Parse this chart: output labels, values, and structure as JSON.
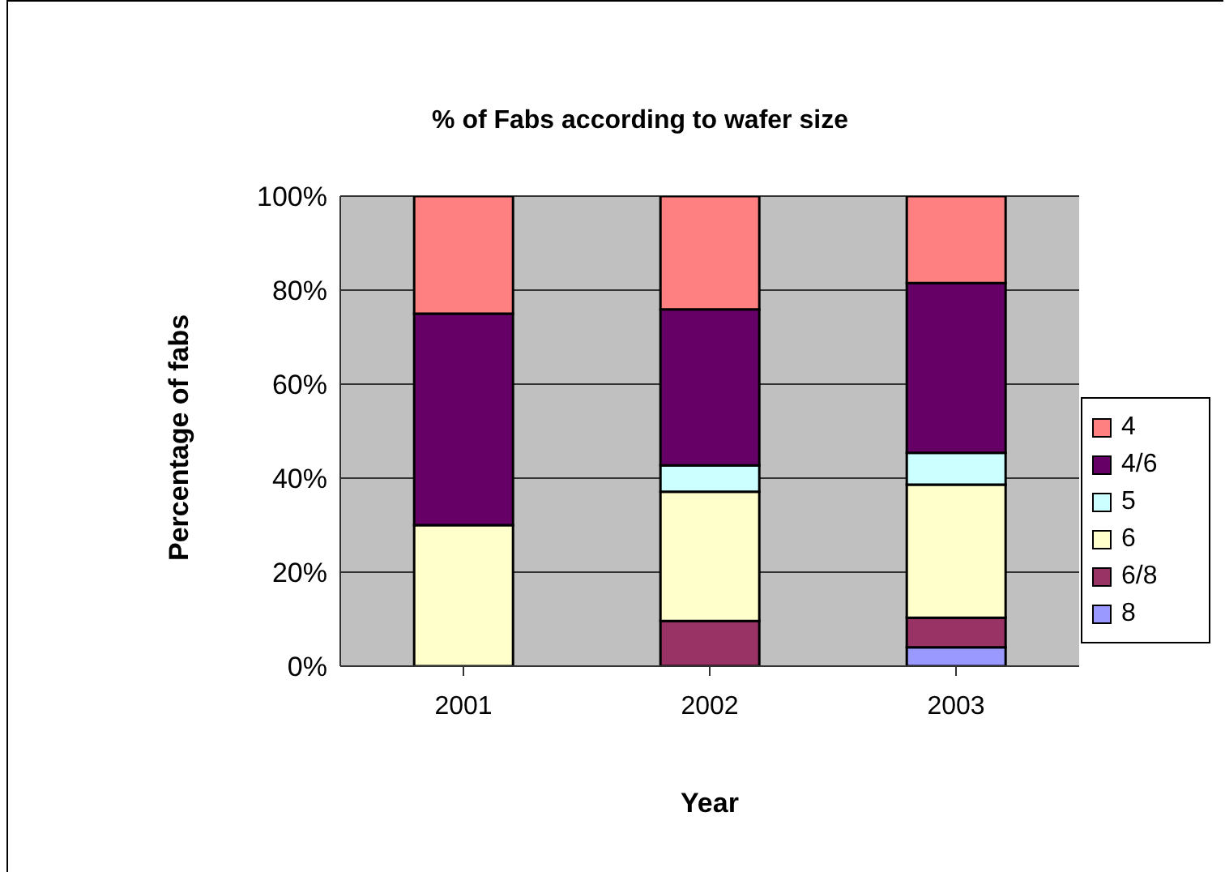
{
  "chart_data": {
    "type": "bar",
    "stacked": true,
    "title": "% of Fabs according to wafer size",
    "xlabel": "Year",
    "ylabel": "Percentage of fabs",
    "categories": [
      "2001",
      "2002",
      "2003"
    ],
    "series": [
      {
        "name": "8",
        "color": "#9999ff",
        "values": [
          0,
          0,
          4
        ]
      },
      {
        "name": "6/8",
        "color": "#993366",
        "values": [
          0,
          9.6,
          6.3
        ]
      },
      {
        "name": "6",
        "color": "#ffffcc",
        "values": [
          30,
          27.5,
          28.3
        ]
      },
      {
        "name": "5",
        "color": "#ccffff",
        "values": [
          0,
          5.6,
          6.8
        ]
      },
      {
        "name": "4/6",
        "color": "#660066",
        "values": [
          45,
          33.2,
          36.1
        ]
      },
      {
        "name": "4",
        "color": "#ff8080",
        "values": [
          25,
          24.1,
          18.5
        ]
      }
    ],
    "ylim": [
      0,
      100
    ],
    "yticks": [
      {
        "value": 0,
        "label": "0%"
      },
      {
        "value": 20,
        "label": "20%"
      },
      {
        "value": 40,
        "label": "40%"
      },
      {
        "value": 60,
        "label": "60%"
      },
      {
        "value": 80,
        "label": "80%"
      },
      {
        "value": 100,
        "label": "100%"
      }
    ],
    "grid": "y",
    "legend": "right"
  }
}
